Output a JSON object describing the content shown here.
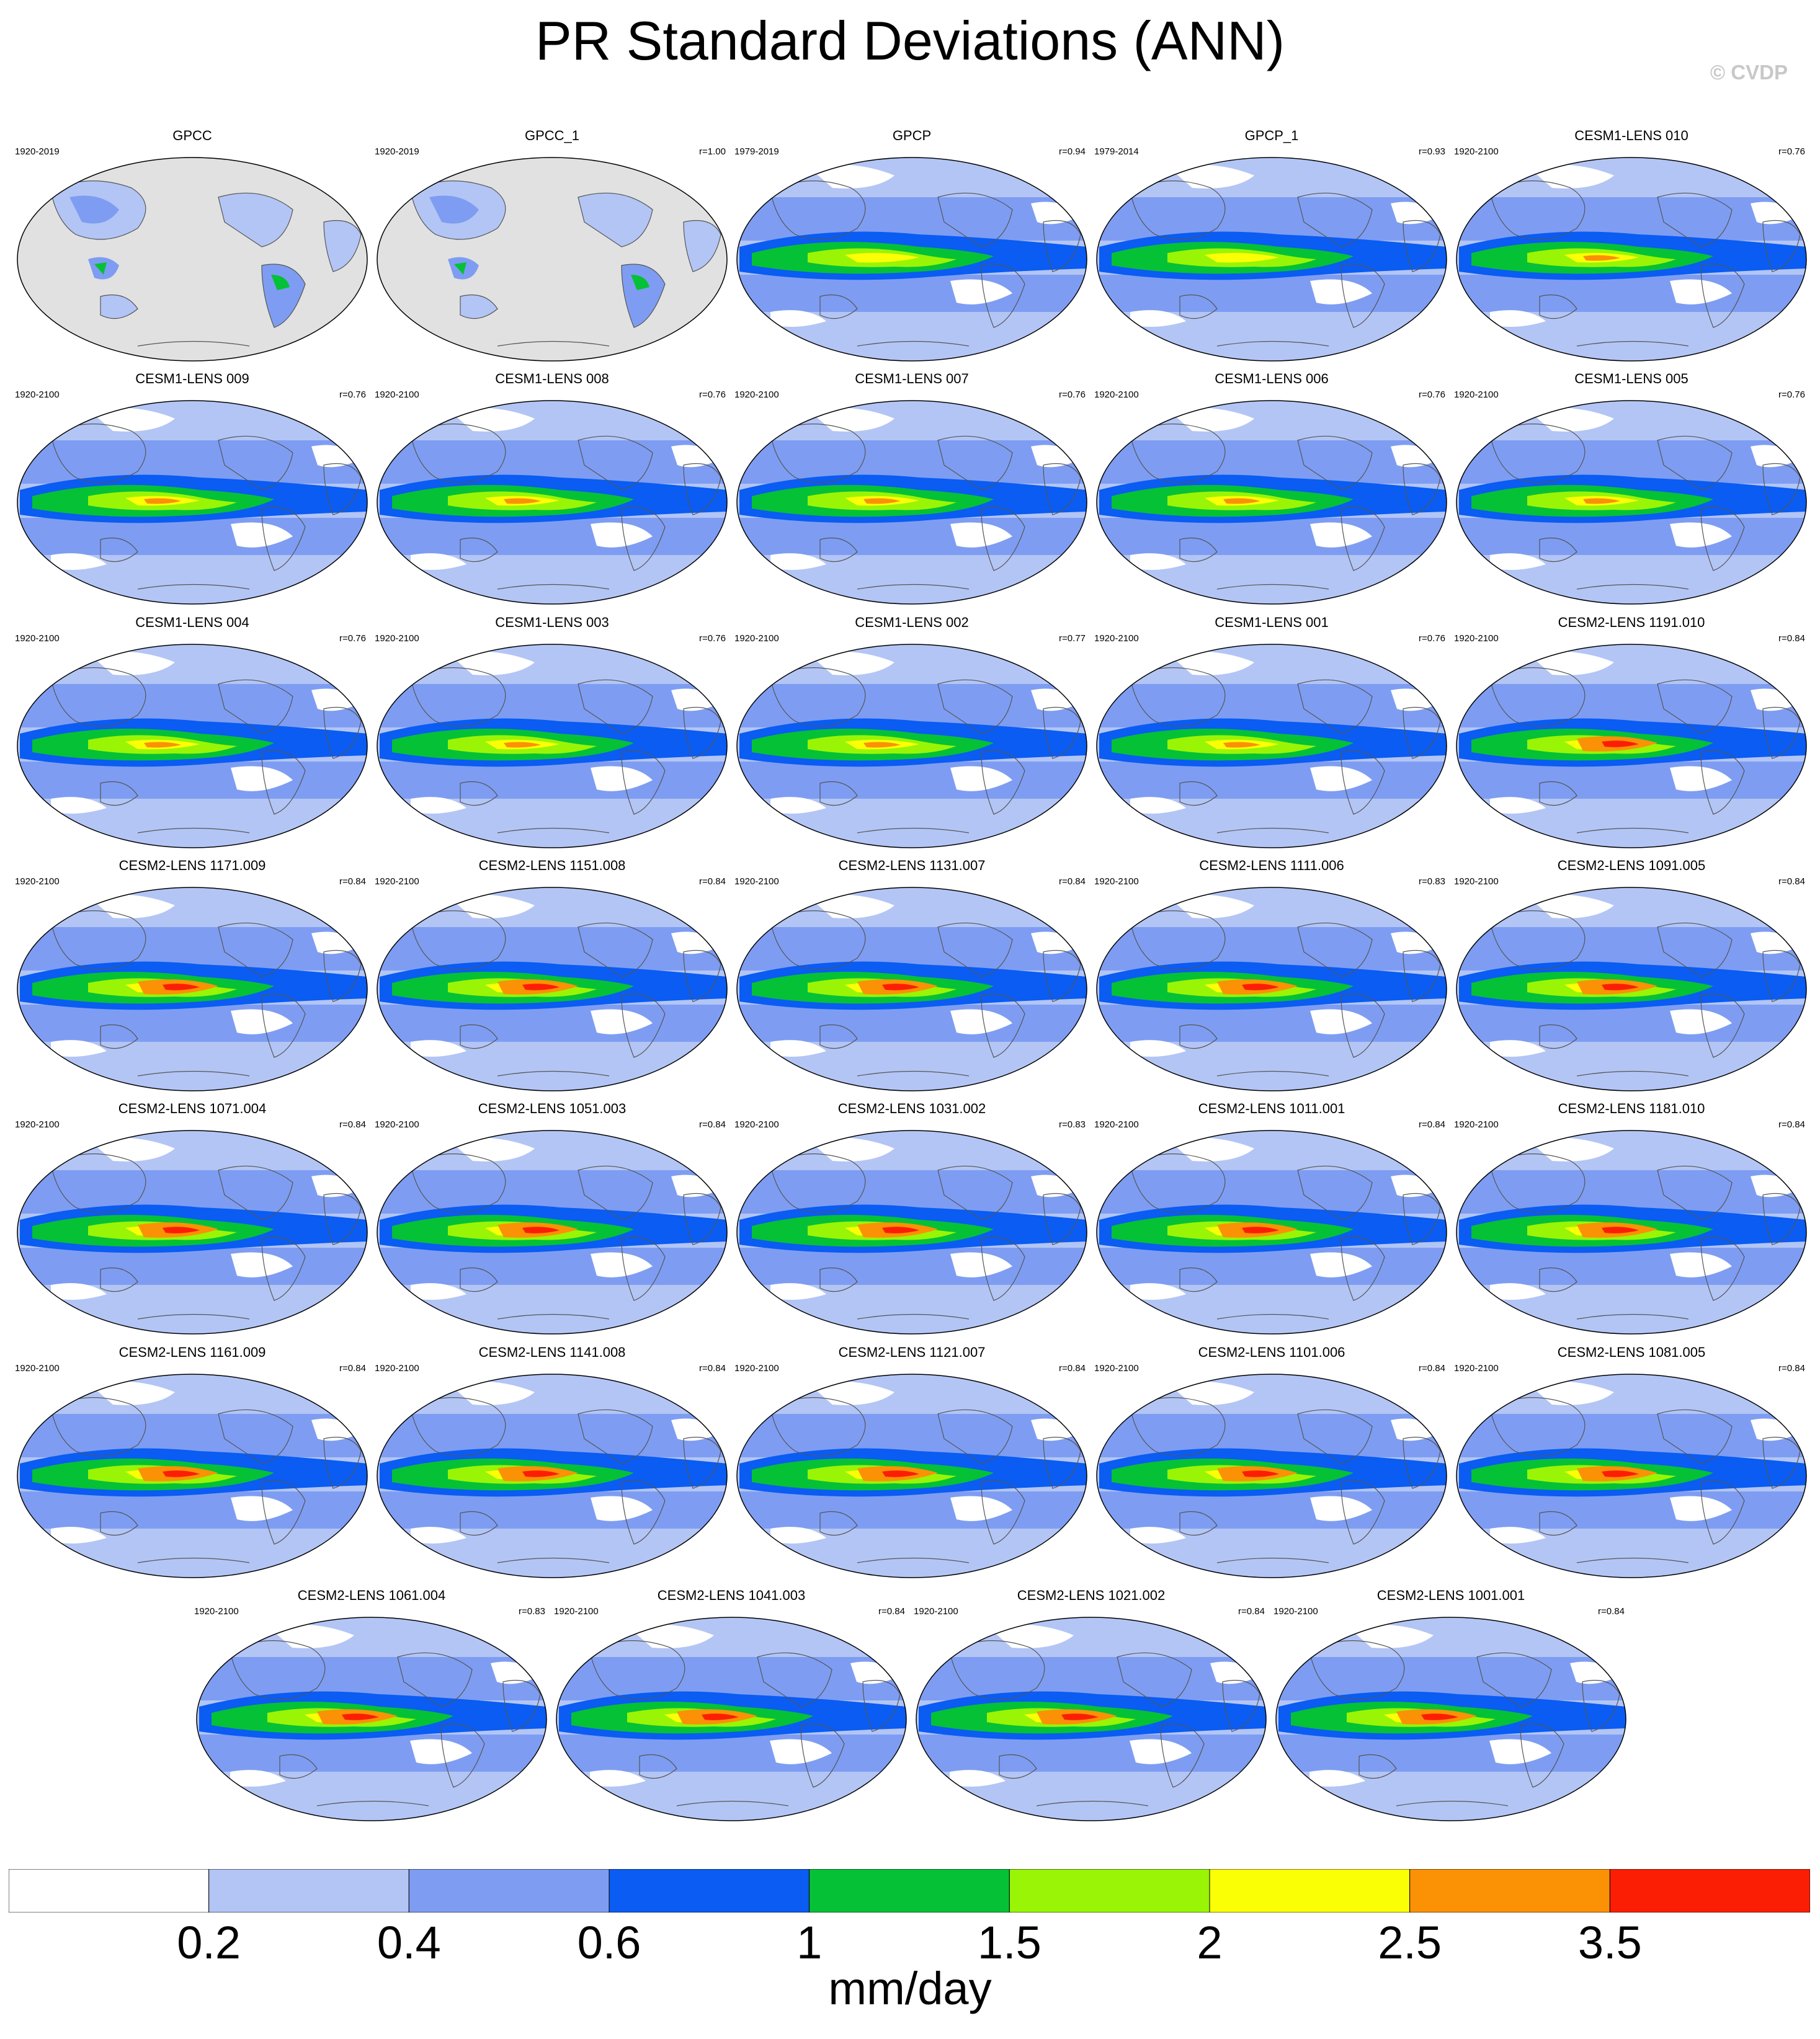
{
  "title": "PR Standard Deviations (ANN)",
  "credit": "© CVDP",
  "colorbar": {
    "colors": [
      "#ffffff",
      "#b3c5f5",
      "#7e9df2",
      "#0a5cf2",
      "#05c136",
      "#99f505",
      "#fbff05",
      "#fb9105",
      "#fb1e05"
    ],
    "tick_labels": [
      "0.2",
      "0.4",
      "0.6",
      "1",
      "1.5",
      "2",
      "2.5",
      "3.5"
    ],
    "units": "mm/day"
  },
  "panels": [
    {
      "name": "GPCC",
      "period": "1920-2019",
      "r": "",
      "type": "obs",
      "intensity": 0
    },
    {
      "name": "GPCC_1",
      "period": "1920-2019",
      "r": "r=1.00",
      "type": "obs",
      "intensity": 0
    },
    {
      "name": "GPCP",
      "period": "1979-2019",
      "r": "r=0.94",
      "type": "gpcp",
      "intensity": 1
    },
    {
      "name": "GPCP_1",
      "period": "1979-2014",
      "r": "r=0.93",
      "type": "gpcp",
      "intensity": 1
    },
    {
      "name": "CESM1-LENS 010",
      "period": "1920-2100",
      "r": "r=0.76",
      "type": "cesm1",
      "intensity": 2
    },
    {
      "name": "CESM1-LENS 009",
      "period": "1920-2100",
      "r": "r=0.76",
      "type": "cesm1",
      "intensity": 2
    },
    {
      "name": "CESM1-LENS 008",
      "period": "1920-2100",
      "r": "r=0.76",
      "type": "cesm1",
      "intensity": 2
    },
    {
      "name": "CESM1-LENS 007",
      "period": "1920-2100",
      "r": "r=0.76",
      "type": "cesm1",
      "intensity": 2
    },
    {
      "name": "CESM1-LENS 006",
      "period": "1920-2100",
      "r": "r=0.76",
      "type": "cesm1",
      "intensity": 2
    },
    {
      "name": "CESM1-LENS 005",
      "period": "1920-2100",
      "r": "r=0.76",
      "type": "cesm1",
      "intensity": 2
    },
    {
      "name": "CESM1-LENS 004",
      "period": "1920-2100",
      "r": "r=0.76",
      "type": "cesm1",
      "intensity": 2
    },
    {
      "name": "CESM1-LENS 003",
      "period": "1920-2100",
      "r": "r=0.76",
      "type": "cesm1",
      "intensity": 2
    },
    {
      "name": "CESM1-LENS 002",
      "period": "1920-2100",
      "r": "r=0.77",
      "type": "cesm1",
      "intensity": 2
    },
    {
      "name": "CESM1-LENS 001",
      "period": "1920-2100",
      "r": "r=0.76",
      "type": "cesm1",
      "intensity": 2
    },
    {
      "name": "CESM2-LENS 1191.010",
      "period": "1920-2100",
      "r": "r=0.84",
      "type": "cesm2",
      "intensity": 3
    },
    {
      "name": "CESM2-LENS 1171.009",
      "period": "1920-2100",
      "r": "r=0.84",
      "type": "cesm2",
      "intensity": 3
    },
    {
      "name": "CESM2-LENS 1151.008",
      "period": "1920-2100",
      "r": "r=0.84",
      "type": "cesm2",
      "intensity": 3
    },
    {
      "name": "CESM2-LENS 1131.007",
      "period": "1920-2100",
      "r": "r=0.84",
      "type": "cesm2",
      "intensity": 3
    },
    {
      "name": "CESM2-LENS 1111.006",
      "period": "1920-2100",
      "r": "r=0.83",
      "type": "cesm2",
      "intensity": 3
    },
    {
      "name": "CESM2-LENS 1091.005",
      "period": "1920-2100",
      "r": "r=0.84",
      "type": "cesm2",
      "intensity": 3
    },
    {
      "name": "CESM2-LENS 1071.004",
      "period": "1920-2100",
      "r": "r=0.84",
      "type": "cesm2",
      "intensity": 3
    },
    {
      "name": "CESM2-LENS 1051.003",
      "period": "1920-2100",
      "r": "r=0.84",
      "type": "cesm2",
      "intensity": 3
    },
    {
      "name": "CESM2-LENS 1031.002",
      "period": "1920-2100",
      "r": "r=0.83",
      "type": "cesm2",
      "intensity": 3
    },
    {
      "name": "CESM2-LENS 1011.001",
      "period": "1920-2100",
      "r": "r=0.84",
      "type": "cesm2",
      "intensity": 3
    },
    {
      "name": "CESM2-LENS 1181.010",
      "period": "1920-2100",
      "r": "r=0.84",
      "type": "cesm2",
      "intensity": 3
    },
    {
      "name": "CESM2-LENS 1161.009",
      "period": "1920-2100",
      "r": "r=0.84",
      "type": "cesm2",
      "intensity": 3
    },
    {
      "name": "CESM2-LENS 1141.008",
      "period": "1920-2100",
      "r": "r=0.84",
      "type": "cesm2",
      "intensity": 3
    },
    {
      "name": "CESM2-LENS 1121.007",
      "period": "1920-2100",
      "r": "r=0.84",
      "type": "cesm2",
      "intensity": 3
    },
    {
      "name": "CESM2-LENS 1101.006",
      "period": "1920-2100",
      "r": "r=0.84",
      "type": "cesm2",
      "intensity": 3
    },
    {
      "name": "CESM2-LENS 1081.005",
      "period": "1920-2100",
      "r": "r=0.84",
      "type": "cesm2",
      "intensity": 3
    },
    {
      "name": "CESM2-LENS 1061.004",
      "period": "1920-2100",
      "r": "r=0.83",
      "type": "cesm2",
      "intensity": 3
    },
    {
      "name": "CESM2-LENS 1041.003",
      "period": "1920-2100",
      "r": "r=0.84",
      "type": "cesm2",
      "intensity": 3
    },
    {
      "name": "CESM2-LENS 1021.002",
      "period": "1920-2100",
      "r": "r=0.84",
      "type": "cesm2",
      "intensity": 3
    },
    {
      "name": "CESM2-LENS 1001.001",
      "period": "1920-2100",
      "r": "r=0.84",
      "type": "cesm2",
      "intensity": 3
    }
  ]
}
